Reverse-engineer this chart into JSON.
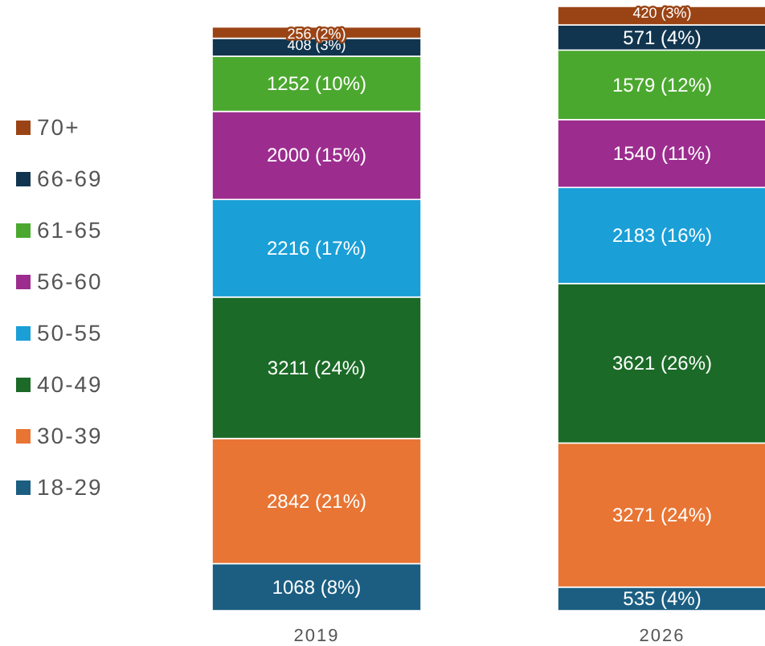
{
  "chart_data": {
    "type": "bar",
    "stacked": true,
    "categories": [
      "2019",
      "2026"
    ],
    "legend": "left",
    "series": [
      {
        "name": "18-29",
        "color": "#1b5e82",
        "values": [
          1068,
          535
        ],
        "value_labels": [
          "1068 (8%)",
          "535 (4%)"
        ]
      },
      {
        "name": "30-39",
        "color": "#e87534",
        "values": [
          2842,
          3271
        ],
        "value_labels": [
          "2842 (21%)",
          "3271 (24%)"
        ]
      },
      {
        "name": "40-49",
        "color": "#1b6a27",
        "values": [
          3211,
          3621
        ],
        "value_labels": [
          "3211 (24%)",
          "3621 (26%)"
        ]
      },
      {
        "name": "50-55",
        "color": "#1a9fd7",
        "values": [
          2216,
          2183
        ],
        "value_labels": [
          "2216 (17%)",
          "2183 (16%)"
        ]
      },
      {
        "name": "56-60",
        "color": "#9c2d8f",
        "values": [
          2000,
          1540
        ],
        "value_labels": [
          "2000 (15%)",
          "1540 (11%)"
        ]
      },
      {
        "name": "61-65",
        "color": "#4ba82f",
        "values": [
          1252,
          1579
        ],
        "value_labels": [
          "1252 (10%)",
          "1579 (12%)"
        ]
      },
      {
        "name": "66-69",
        "color": "#11354f",
        "values": [
          408,
          571
        ],
        "value_labels": [
          "408 (3%)",
          "571 (4%)"
        ]
      },
      {
        "name": "70+",
        "color": "#9a4415",
        "values": [
          256,
          420
        ],
        "value_labels": [
          "256 (2%)",
          "420 (3%)"
        ]
      }
    ]
  }
}
